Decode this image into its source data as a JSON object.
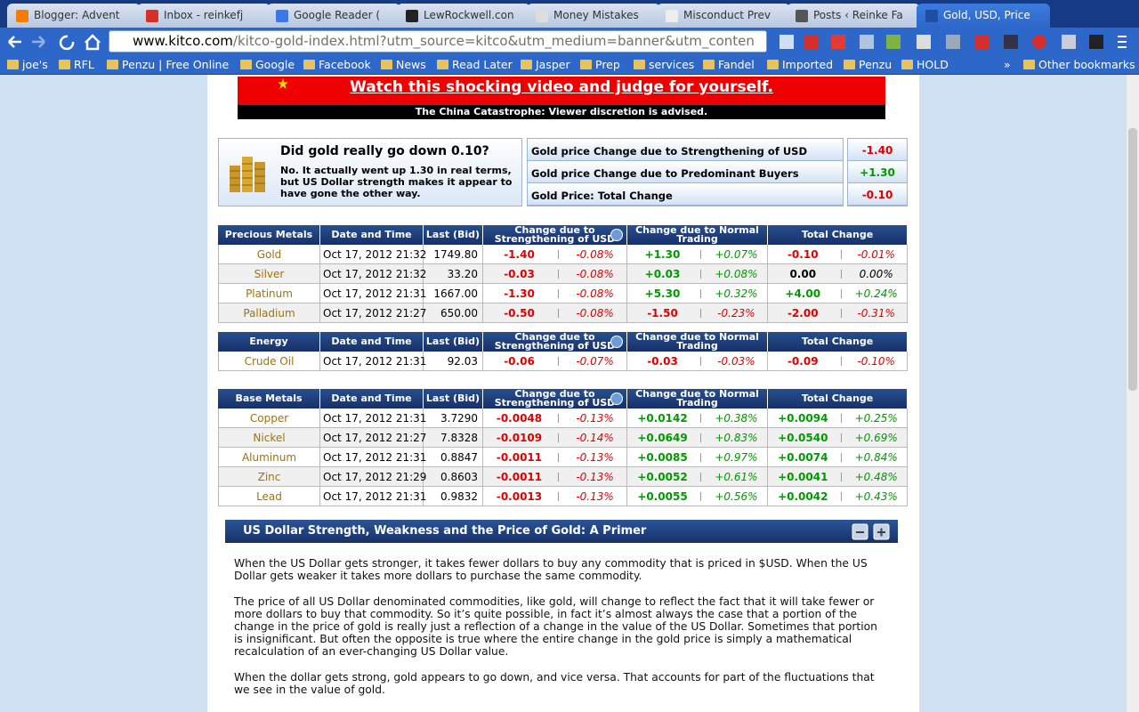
{
  "browser": {
    "tabs": [
      "Blogger: Advent",
      "Inbox - reinkefj",
      "Google Reader (",
      "LewRockwell.con",
      "Money Mistakes",
      "Misconduct Prev",
      "Posts ‹ Reinke Fa",
      "Gold, USD, Price"
    ],
    "url_host": "www.kitco.com",
    "url_path": "/kitco-gold-index.html?utm_source=kitco&utm_medium=banner&utm_conten",
    "bookmarks": [
      "joe's",
      "RFL",
      "Penzu | Free Online",
      "Google",
      "Facebook",
      "News",
      "Read Later",
      "Jasper",
      "Prep",
      "services",
      "Fandel",
      "Imported",
      "Penzu",
      "HOLD"
    ],
    "more_bookmarks": "»",
    "other_bookmarks": "Other bookmarks"
  },
  "banner": {
    "headline": "Watch this shocking video and judge for yourself.",
    "caption": "The China Catastrophe: Viewer discretion is advised."
  },
  "summary": {
    "question": "Did gold really go down 0.10?",
    "answer": "No. It actually went up 1.30 in real terms, but US Dollar strength makes it appear to have gone the other way.",
    "rows": [
      [
        "Gold price Change due to Strengthening of USD",
        "-1.40"
      ],
      [
        "Gold price Change due to Predominant Buyers",
        "+1.30"
      ],
      [
        "Gold Price: Total Change",
        "-0.10"
      ]
    ]
  },
  "tables": [
    {
      "headers": [
        "Precious Metals",
        "Date and Time",
        "Last (Bid)",
        "Change due to Strengthening of USD",
        "Change due to Normal Trading",
        "Total Change"
      ],
      "rows": [
        [
          "Gold",
          "Oct 17, 2012 21:32",
          "1749.80",
          "-1.40",
          "-0.08%",
          "+1.30",
          "+0.07%",
          "-0.10",
          "-0.01%"
        ],
        [
          "Silver",
          "Oct 17, 2012 21:32",
          "33.20",
          "-0.03",
          "-0.08%",
          "+0.03",
          "+0.08%",
          "0.00",
          "0.00%"
        ],
        [
          "Platinum",
          "Oct 17, 2012 21:31",
          "1667.00",
          "-1.30",
          "-0.08%",
          "+5.30",
          "+0.32%",
          "+4.00",
          "+0.24%"
        ],
        [
          "Palladium",
          "Oct 17, 2012 21:27",
          "650.00",
          "-0.50",
          "-0.08%",
          "-1.50",
          "-0.23%",
          "-2.00",
          "-0.31%"
        ]
      ]
    },
    {
      "headers": [
        "Energy",
        "Date and Time",
        "Last (Bid)",
        "Change due to Strengthening of USD",
        "Change due to Normal Trading",
        "Total Change"
      ],
      "rows": [
        [
          "Crude Oil",
          "Oct 17, 2012 21:31",
          "92.03",
          "-0.06",
          "-0.07%",
          "-0.03",
          "-0.03%",
          "-0.09",
          "-0.10%"
        ]
      ]
    },
    {
      "headers": [
        "Base Metals",
        "Date and Time",
        "Last (Bid)",
        "Change due to Strengthening of USD",
        "Change due to Normal Trading",
        "Total Change"
      ],
      "rows": [
        [
          "Copper",
          "Oct 17, 2012 21:31",
          "3.7290",
          "-0.0048",
          "-0.13%",
          "+0.0142",
          "+0.38%",
          "+0.0094",
          "+0.25%"
        ],
        [
          "Nickel",
          "Oct 17, 2012 21:27",
          "7.8328",
          "-0.0109",
          "-0.14%",
          "+0.0649",
          "+0.83%",
          "+0.0540",
          "+0.69%"
        ],
        [
          "Aluminum",
          "Oct 17, 2012 21:31",
          "0.8847",
          "-0.0011",
          "-0.13%",
          "+0.0085",
          "+0.97%",
          "+0.0074",
          "+0.84%"
        ],
        [
          "Zinc",
          "Oct 17, 2012 21:29",
          "0.8603",
          "-0.0011",
          "-0.13%",
          "+0.0052",
          "+0.61%",
          "+0.0041",
          "+0.48%"
        ],
        [
          "Lead",
          "Oct 17, 2012 21:31",
          "0.9832",
          "-0.0013",
          "-0.13%",
          "+0.0055",
          "+0.56%",
          "+0.0042",
          "+0.43%"
        ]
      ]
    }
  ],
  "primer": {
    "title": "US Dollar Strength, Weakness and the Price of Gold: A Primer",
    "paragraphs": [
      "When the US Dollar gets stronger, it takes fewer dollars to buy any commodity that is priced in $USD. When the US Dollar gets weaker it takes more dollars to purchase the same commodity.",
      "The price of all US Dollar denominated commodities, like gold, will change to reflect the fact that it will take fewer or more dollars to buy that commodity. So it’s quite possible, in fact it’s almost always the case that a portion of the change in the price of gold is really just a reflection of a change in the value of the US Dollar. Sometimes that portion is insignificant. But often the opposite is true where the entire change in the gold price is simply a mathematical recalculation of an ever-changing US Dollar value.",
      "When the dollar gets strong, gold appears to go down, and vice versa. That accounts for part of the fluctuations that we see in the value of gold."
    ]
  }
}
